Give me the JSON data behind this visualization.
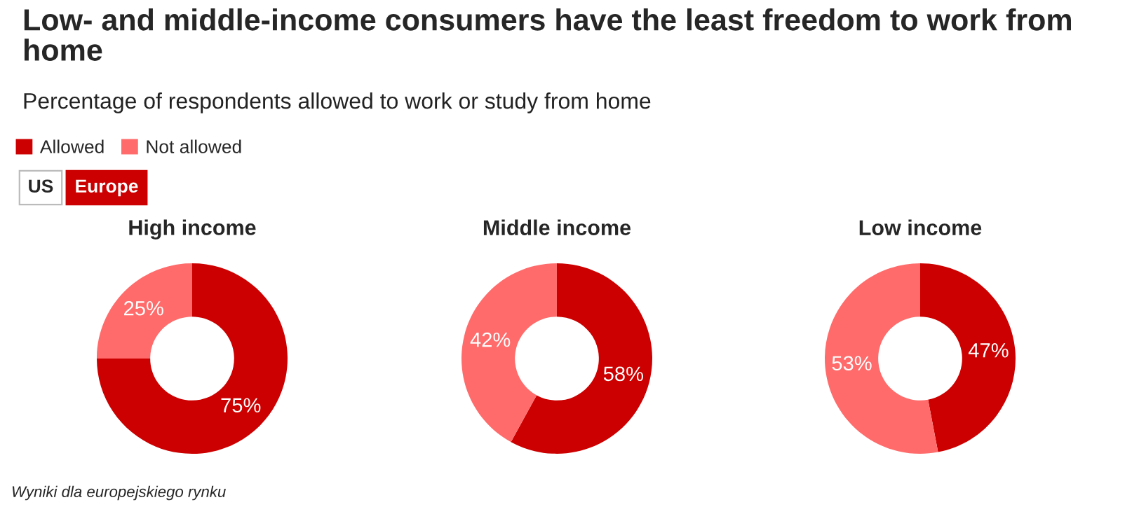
{
  "chart_data": [
    {
      "type": "other",
      "title": "Low- and middle-income consumers have the least freedom to work from home",
      "subtitle": "Percentage of respondents allowed to work or study from home",
      "annotations": [
        "US",
        "Europe",
        "Wyniki dla europejskiego rynku"
      ]
    },
    {
      "type": "donut",
      "title": "High income",
      "categories": [
        "Allowed",
        "Not allowed"
      ],
      "values": [
        75,
        25
      ],
      "value_labels": [
        "75%",
        "25%"
      ],
      "colors": [
        "#cc0000",
        "#ff6b6b"
      ],
      "legend": "top left"
    },
    {
      "type": "donut",
      "title": "Middle income",
      "categories": [
        null,
        null
      ],
      "values": [
        58,
        42
      ],
      "value_labels": [
        "58%",
        "42%"
      ],
      "colors": [
        "#cc0000",
        "#ff6b6b"
      ]
    },
    {
      "type": "donut",
      "title": "Low income",
      "categories": [
        null,
        null
      ],
      "values": [
        47,
        53
      ],
      "value_labels": [
        "47%",
        "53%"
      ],
      "colors": [
        "#cc0000",
        "#ff6b6b"
      ]
    }
  ]
}
